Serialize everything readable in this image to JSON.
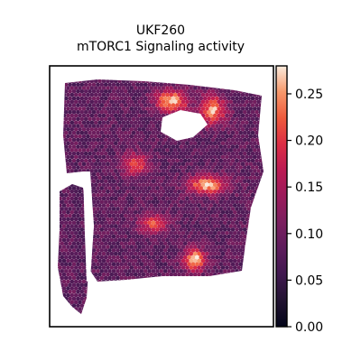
{
  "chart_data": {
    "type": "heatmap",
    "title_lines": [
      "UKF260",
      "mTORC1 Signaling activity"
    ],
    "colormap": "rocket",
    "colorbar": {
      "range": [
        0.0,
        0.28
      ],
      "ticks": [
        0.0,
        0.05,
        0.1,
        0.15,
        0.2,
        0.25
      ],
      "tick_labels": [
        "0.00",
        "0.05",
        "0.10",
        "0.15",
        "0.20",
        "0.25"
      ],
      "placement": "right"
    },
    "axes_visible": false,
    "grid": false,
    "hotspots": [
      {
        "label": "upper-center",
        "value": 0.27
      },
      {
        "label": "upper-right",
        "value": 0.25
      },
      {
        "label": "center-right",
        "value": 0.26
      },
      {
        "label": "left-center",
        "value": 0.22
      },
      {
        "label": "lower-right",
        "value": 0.28
      },
      {
        "label": "lower-center",
        "value": 0.21
      }
    ]
  }
}
